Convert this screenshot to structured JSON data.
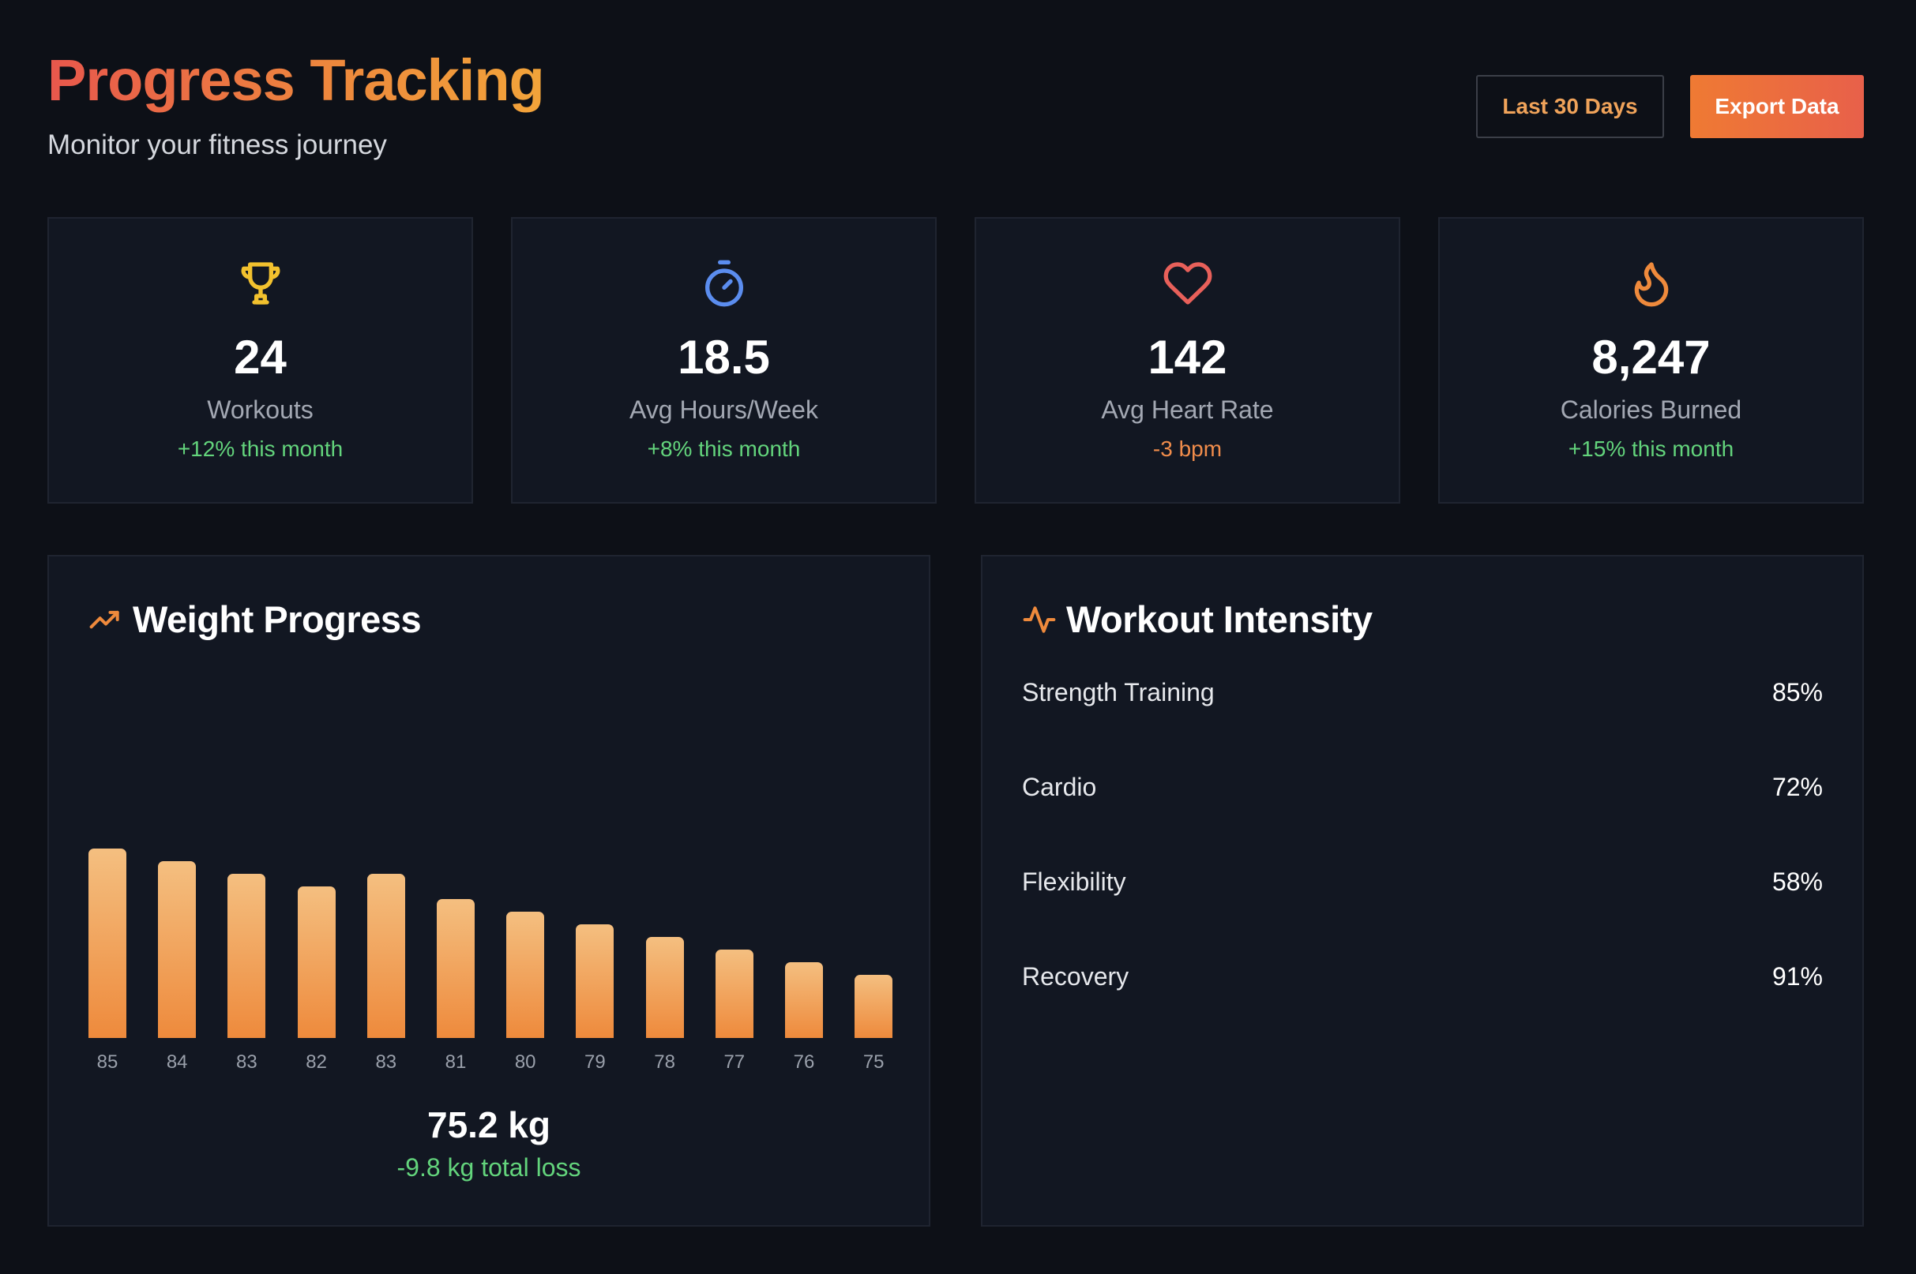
{
  "header": {
    "title": "Progress Tracking",
    "subtitle": "Monitor your fitness journey",
    "range_button": "Last 30 Days",
    "export_button": "Export Data"
  },
  "stats": [
    {
      "icon": "trophy-icon",
      "value": "24",
      "label": "Workouts",
      "change": "+12% this month",
      "change_color": "#63d47c"
    },
    {
      "icon": "stopwatch-icon",
      "value": "18.5",
      "label": "Avg Hours/Week",
      "change": "+8% this month",
      "change_color": "#63d47c"
    },
    {
      "icon": "heart-icon",
      "value": "142",
      "label": "Avg Heart Rate",
      "change": "-3 bpm",
      "change_color": "#f08c4b"
    },
    {
      "icon": "flame-icon",
      "value": "8,247",
      "label": "Calories Burned",
      "change": "+15% this month",
      "change_color": "#63d47c"
    }
  ],
  "weight_panel": {
    "title": "Weight Progress",
    "icon": "trending-up-icon",
    "current": "75.2 kg",
    "total_loss": "-9.8 kg total loss"
  },
  "chart_data": {
    "type": "bar",
    "categories": [
      "85",
      "84",
      "83",
      "82",
      "83",
      "81",
      "80",
      "79",
      "78",
      "77",
      "76",
      "75"
    ],
    "values": [
      85,
      84,
      83,
      82,
      83,
      81,
      80,
      79,
      78,
      77,
      76,
      75
    ],
    "title": "Weight Progress",
    "xlabel": "",
    "ylabel": "",
    "ylim": [
      70,
      85
    ]
  },
  "intensity_panel": {
    "title": "Workout Intensity",
    "icon": "activity-pulse-icon",
    "items": [
      {
        "name": "Strength Training",
        "percent": "85%"
      },
      {
        "name": "Cardio",
        "percent": "72%"
      },
      {
        "name": "Flexibility",
        "percent": "58%"
      },
      {
        "name": "Recovery",
        "percent": "91%"
      }
    ]
  },
  "colors": {
    "accent": "#ee8a3c",
    "accent_red": "#e8574c",
    "positive": "#63d47c",
    "background": "#0d1017",
    "card": "#121722"
  }
}
